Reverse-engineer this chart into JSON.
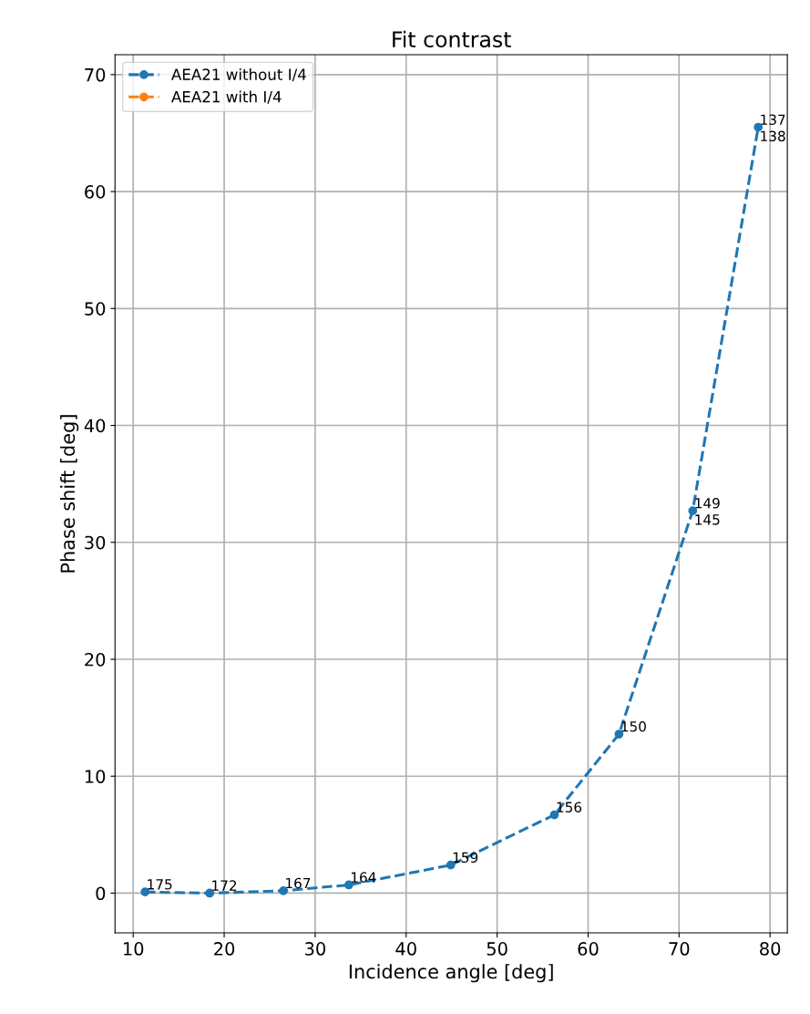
{
  "chart_data": {
    "type": "line",
    "title": "Fit contrast",
    "xlabel": "Incidence angle [deg]",
    "ylabel": "Phase shift [deg]",
    "x": [
      11.3,
      18.4,
      26.5,
      33.7,
      44.9,
      56.3,
      63.4,
      71.5,
      78.7
    ],
    "series": [
      {
        "name": "AEA21 without I/4",
        "color": "#1f77b4",
        "values": [
          0.1,
          0,
          0.2,
          0.7,
          2.4,
          6.7,
          13.6,
          32.7,
          65.5
        ]
      },
      {
        "name": "AEA21 with I/4",
        "color": "#ff7f0e",
        "values": [
          null,
          null,
          null,
          null,
          null,
          null,
          null,
          null,
          null
        ]
      }
    ],
    "annotations": [
      {
        "text": "175",
        "x": 11.3,
        "y": 0.1
      },
      {
        "text": "172",
        "x": 18.4,
        "y": 0
      },
      {
        "text": "167",
        "x": 26.5,
        "y": 0.2
      },
      {
        "text": "164",
        "x": 33.7,
        "y": 0.7
      },
      {
        "text": "159",
        "x": 44.9,
        "y": 2.4
      },
      {
        "text": "156",
        "x": 56.3,
        "y": 6.7
      },
      {
        "text": "150",
        "x": 63.4,
        "y": 13.6
      },
      {
        "text": "149",
        "x": 71.5,
        "y": 32.7
      },
      {
        "text": "145",
        "x": 71.5,
        "y": 32.7
      },
      {
        "text": "137",
        "x": 78.7,
        "y": 65.5
      },
      {
        "text": "138",
        "x": 78.7,
        "y": 65.5
      }
    ],
    "xlim": [
      8.0,
      81.9
    ],
    "ylim": [
      -3.4,
      71.7
    ],
    "xticks": [
      10,
      20,
      30,
      40,
      50,
      60,
      70,
      80
    ],
    "yticks": [
      0,
      10,
      20,
      30,
      40,
      50,
      60,
      70
    ],
    "grid": true,
    "legend": "top left",
    "marker": "circle",
    "line_style": "dashed"
  }
}
